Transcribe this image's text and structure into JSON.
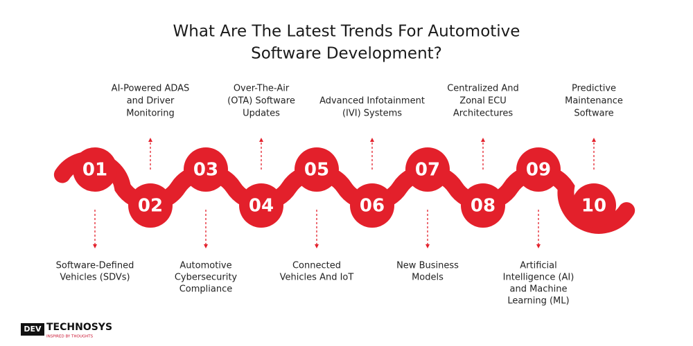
{
  "title": [
    "What Are The Latest Trends For Automotive",
    "Software Development?"
  ],
  "items": [
    {
      "number": "01",
      "label": [
        "Software-Defined",
        "Vehicles (SDVs)"
      ]
    },
    {
      "number": "02",
      "label": [
        "AI-Powered ADAS",
        "and Driver",
        "Monitoring"
      ]
    },
    {
      "number": "03",
      "label": [
        "Automotive",
        "Cybersecurity",
        "Compliance"
      ]
    },
    {
      "number": "04",
      "label": [
        "Over-The-Air",
        "(OTA) Software",
        "Updates"
      ]
    },
    {
      "number": "05",
      "label": [
        "Connected",
        "Vehicles And IoT"
      ]
    },
    {
      "number": "06",
      "label": [
        "Advanced Infotainment",
        "(IVI) Systems"
      ]
    },
    {
      "number": "07",
      "label": [
        "New Business",
        "Models"
      ]
    },
    {
      "number": "08",
      "label": [
        "Centralized And",
        "Zonal ECU",
        "Architectures"
      ]
    },
    {
      "number": "09",
      "label": [
        "Artificial",
        "Intelligence (AI)",
        "and Machine",
        "Learning (ML)"
      ]
    },
    {
      "number": "10",
      "label": [
        "Predictive",
        "Maintenance",
        "Software"
      ]
    }
  ],
  "logo": {
    "name": "TECHNOSYS",
    "mark": "DEV",
    "tagline": "INSPIRED BY THOUGHTS"
  }
}
